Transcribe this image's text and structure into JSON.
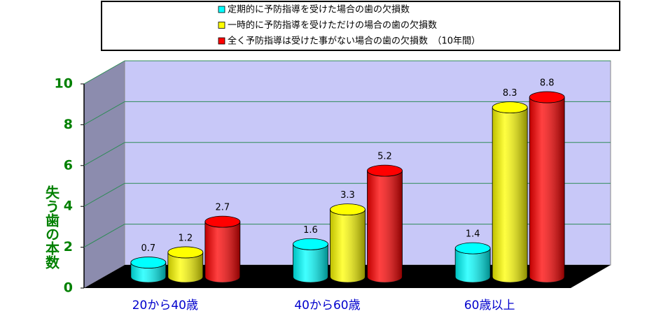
{
  "chart_data": {
    "type": "bar3d",
    "categories": [
      "20から40歳",
      "40から60歳",
      "60歳以上"
    ],
    "y_label": "失う歯の本数",
    "series": [
      {
        "name": "定期的に予防指導を受けた場合の歯の欠損数",
        "color": "#00ffff",
        "values": [
          0.7,
          1.6,
          1.4
        ]
      },
      {
        "name": "一時的に予防指導を受けただけの場合の歯の欠損数",
        "color": "#ffff00",
        "values": [
          1.2,
          3.3,
          8.3
        ]
      },
      {
        "name": "全く予防指導は受けた事がない場合の歯の欠損数　（10年間）",
        "color": "#ff0000",
        "values": [
          2.7,
          5.2,
          8.8
        ]
      }
    ],
    "ylim": [
      0,
      10
    ],
    "yticks": [
      0,
      2,
      4,
      6,
      8,
      10
    ],
    "grid": true
  }
}
